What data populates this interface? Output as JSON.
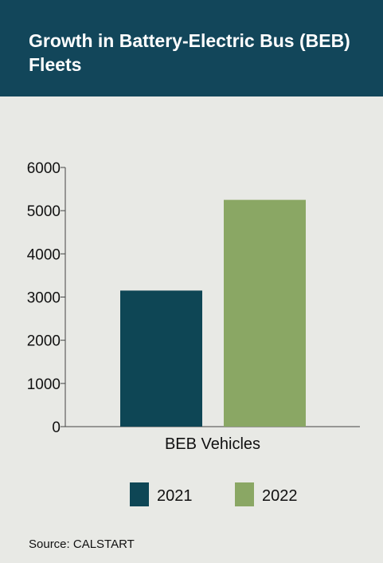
{
  "header": {
    "title": "Growth in Battery-Electric Bus (BEB) Fleets"
  },
  "colors": {
    "header_bg": "#12465a",
    "series_2021": "#0e4655",
    "series_2022": "#8aa764",
    "background": "#e8e9e5"
  },
  "chart_data": {
    "type": "bar",
    "title": "Growth in Battery-Electric Bus (BEB) Fleets",
    "categories": [
      "BEB Vehicles"
    ],
    "series": [
      {
        "name": "2021",
        "values": [
          3150
        ],
        "color": "#0e4655"
      },
      {
        "name": "2022",
        "values": [
          5250
        ],
        "color": "#8aa764"
      }
    ],
    "yticks": [
      "0",
      "1000",
      "2000",
      "3000",
      "4000",
      "5000",
      "6000"
    ],
    "ylim": [
      0,
      6000
    ],
    "xlabel": "",
    "ylabel": "",
    "legend_position": "bottom",
    "grid": false
  },
  "footer": {
    "source": "Source: CALSTART"
  }
}
